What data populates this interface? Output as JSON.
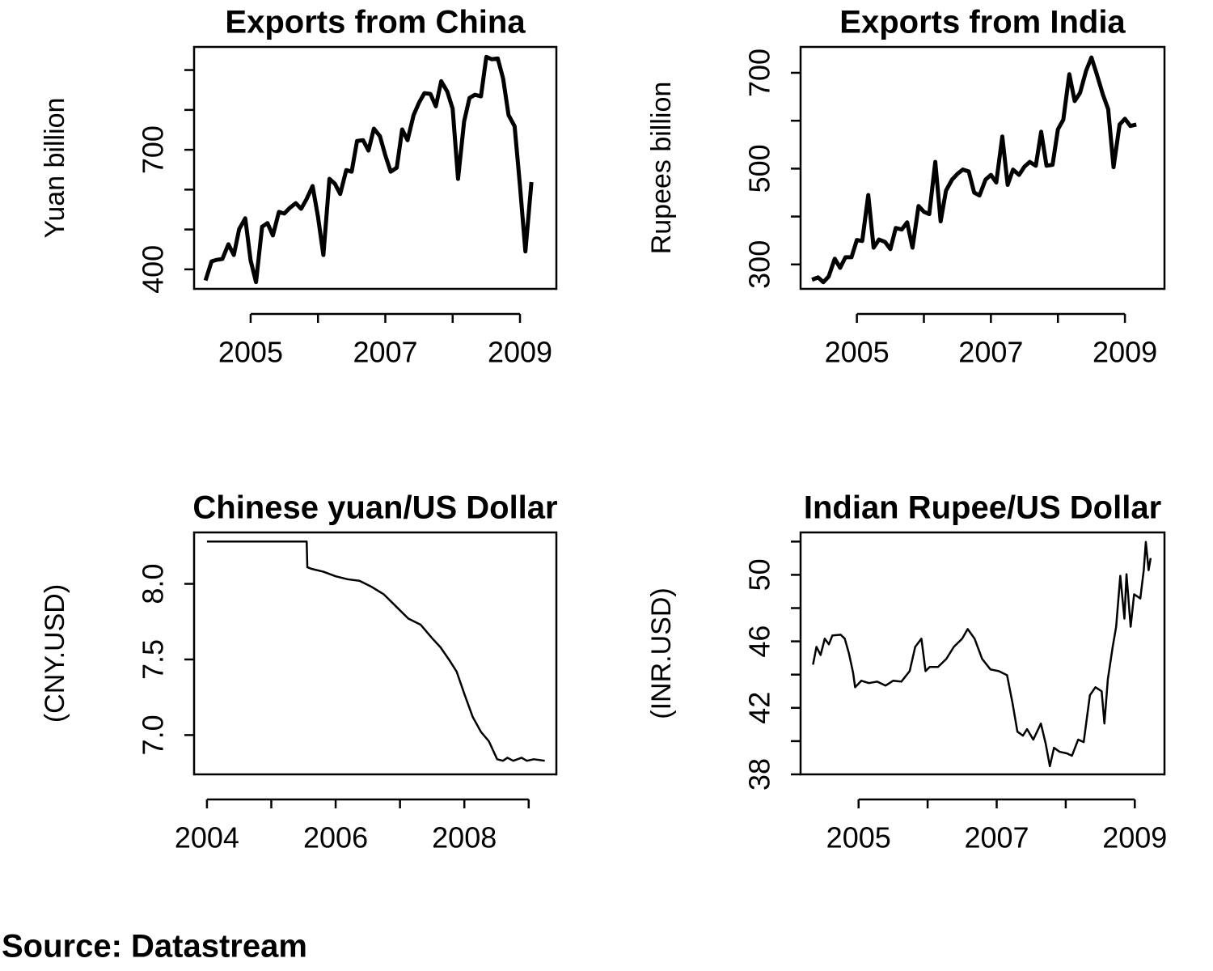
{
  "chart_data": [
    {
      "type": "line",
      "title": "Exports from China",
      "ylabel": "Yuan billion",
      "color": "#000000",
      "x": [
        2004.33,
        2004.42,
        2004.5,
        2004.58,
        2004.67,
        2004.75,
        2004.83,
        2004.92,
        2005,
        2005.08,
        2005.17,
        2005.25,
        2005.33,
        2005.42,
        2005.5,
        2005.58,
        2005.67,
        2005.75,
        2005.83,
        2005.92,
        2006,
        2006.08,
        2006.17,
        2006.25,
        2006.33,
        2006.42,
        2006.5,
        2006.58,
        2006.67,
        2006.75,
        2006.83,
        2006.92,
        2007,
        2007.08,
        2007.17,
        2007.25,
        2007.33,
        2007.42,
        2007.5,
        2007.58,
        2007.67,
        2007.75,
        2007.83,
        2007.92,
        2008,
        2008.08,
        2008.17,
        2008.25,
        2008.33,
        2008.42,
        2008.5,
        2008.58,
        2008.67,
        2008.75,
        2008.83,
        2008.92,
        2009,
        2009.08,
        2009.17
      ],
      "values": [
        372,
        420,
        424,
        426,
        463,
        436,
        501,
        528,
        422,
        368,
        507,
        516,
        485,
        544,
        540,
        554,
        566,
        552,
        576,
        609,
        532,
        436,
        627,
        615,
        589,
        649,
        645,
        722,
        724,
        698,
        753,
        734,
        686,
        645,
        655,
        751,
        724,
        787,
        818,
        842,
        840,
        809,
        872,
        846,
        803,
        627,
        771,
        830,
        838,
        834,
        933,
        927,
        929,
        878,
        787,
        759,
        609,
        445,
        619
      ],
      "xlim": [
        2004.16,
        2009.54
      ],
      "ylim": [
        351,
        958
      ],
      "xticks": [
        2005,
        {
          "value": 2006,
          "label": null
        },
        2007,
        {
          "value": 2008,
          "label": null
        },
        2009
      ],
      "yticks": [
        400,
        {
          "value": 500,
          "label": null
        },
        {
          "value": 600,
          "label": null
        },
        700,
        {
          "value": 800,
          "label": null
        },
        {
          "value": 900,
          "label": null
        }
      ]
    },
    {
      "type": "line",
      "title": "Exports from India",
      "ylabel": "Rupees billion",
      "color": "#000000",
      "x": [
        2004.33,
        2004.42,
        2004.5,
        2004.58,
        2004.67,
        2004.75,
        2004.83,
        2004.92,
        2005,
        2005.08,
        2005.17,
        2005.25,
        2005.33,
        2005.42,
        2005.5,
        2005.58,
        2005.67,
        2005.75,
        2005.83,
        2005.92,
        2006,
        2006.08,
        2006.17,
        2006.25,
        2006.33,
        2006.42,
        2006.5,
        2006.58,
        2006.67,
        2006.75,
        2006.83,
        2006.92,
        2007,
        2007.08,
        2007.17,
        2007.25,
        2007.33,
        2007.42,
        2007.5,
        2007.58,
        2007.67,
        2007.75,
        2007.83,
        2007.92,
        2008,
        2008.08,
        2008.17,
        2008.25,
        2008.33,
        2008.42,
        2008.5,
        2008.58,
        2008.67,
        2008.75,
        2008.83,
        2008.92,
        2009,
        2009.08,
        2009.17
      ],
      "values": [
        268,
        273,
        263,
        275,
        312,
        293,
        315,
        315,
        351,
        349,
        445,
        335,
        352,
        347,
        332,
        376,
        373,
        388,
        335,
        422,
        410,
        405,
        514,
        390,
        454,
        477,
        489,
        498,
        494,
        450,
        444,
        477,
        487,
        471,
        567,
        466,
        498,
        487,
        504,
        514,
        506,
        577,
        506,
        508,
        582,
        602,
        697,
        641,
        658,
        704,
        732,
        697,
        655,
        624,
        503,
        592,
        604,
        589,
        592
      ],
      "xlim": [
        2004.16,
        2009.59
      ],
      "ylim": [
        249,
        754
      ],
      "xticks": [
        2005,
        {
          "value": 2006,
          "label": null
        },
        2007,
        {
          "value": 2008,
          "label": null
        },
        2009
      ],
      "yticks": [
        300,
        {
          "value": 400,
          "label": null
        },
        500,
        {
          "value": 600,
          "label": null
        },
        700
      ]
    },
    {
      "type": "line",
      "title": "Chinese yuan/US Dollar",
      "ylabel": "(CNY.USD)",
      "color": "#000000",
      "x": [
        2004.0,
        2005.55,
        2005.56,
        2005.62,
        2005.81,
        2006.0,
        2006.19,
        2006.37,
        2006.56,
        2006.75,
        2006.94,
        2007.13,
        2007.32,
        2007.5,
        2007.63,
        2007.76,
        2007.88,
        2008.01,
        2008.13,
        2008.26,
        2008.38,
        2008.51,
        2008.6,
        2008.67,
        2008.76,
        2008.89,
        2008.97,
        2009.08,
        2009.25
      ],
      "values": [
        8.28,
        8.28,
        8.11,
        8.1,
        8.08,
        8.05,
        8.03,
        8.02,
        7.98,
        7.93,
        7.85,
        7.77,
        7.73,
        7.64,
        7.58,
        7.5,
        7.42,
        7.26,
        7.12,
        7.02,
        6.96,
        6.84,
        6.83,
        6.85,
        6.83,
        6.85,
        6.83,
        6.84,
        6.83
      ],
      "xlim": [
        2003.8,
        2009.43
      ],
      "ylim": [
        6.74,
        8.34
      ],
      "xticks": [
        2004,
        {
          "value": 2005,
          "label": null
        },
        2006,
        {
          "value": 2007,
          "label": null
        },
        2008,
        {
          "value": 2009,
          "label": null
        }
      ],
      "yticks": [
        {
          "value": 7,
          "label": "7.0"
        },
        7.5,
        {
          "value": 8,
          "label": "8.0"
        }
      ]
    },
    {
      "type": "line",
      "title": "Indian Rupee/US Dollar",
      "ylabel": "(INR.USD)",
      "color": "#000000",
      "x": [
        2004.34,
        2004.39,
        2004.45,
        2004.51,
        2004.57,
        2004.62,
        2004.74,
        2004.8,
        2004.86,
        2004.92,
        2004.95,
        2005.04,
        2005.15,
        2005.27,
        2005.39,
        2005.5,
        2005.62,
        2005.74,
        2005.82,
        2005.91,
        2005.97,
        2006.03,
        2006.15,
        2006.27,
        2006.38,
        2006.5,
        2006.58,
        2006.68,
        2006.79,
        2006.91,
        2007.03,
        2007.15,
        2007.23,
        2007.3,
        2007.38,
        2007.44,
        2007.53,
        2007.64,
        2007.71,
        2007.77,
        2007.83,
        2007.91,
        2008.02,
        2008.09,
        2008.18,
        2008.26,
        2008.35,
        2008.43,
        2008.52,
        2008.56,
        2008.61,
        2008.68,
        2008.73,
        2008.79,
        2008.85,
        2008.88,
        2008.94,
        2008.99,
        2009.08,
        2009.13,
        2009.16,
        2009.2,
        2009.23
      ],
      "values": [
        44.6,
        45.67,
        45.18,
        46.16,
        45.82,
        46.35,
        46.4,
        46.16,
        45.28,
        44.12,
        43.24,
        43.63,
        43.49,
        43.58,
        43.34,
        43.63,
        43.58,
        44.21,
        45.67,
        46.16,
        44.21,
        44.46,
        44.46,
        44.94,
        45.67,
        46.16,
        46.74,
        46.16,
        44.94,
        44.31,
        44.21,
        43.97,
        42.27,
        40.57,
        40.33,
        40.72,
        40.09,
        41.06,
        39.84,
        38.49,
        39.6,
        39.36,
        39.26,
        39.12,
        40.09,
        39.94,
        42.76,
        43.24,
        43.0,
        41.06,
        43.73,
        45.67,
        46.88,
        49.94,
        47.37,
        50.04,
        46.88,
        48.83,
        48.58,
        50.28,
        51.98,
        50.28,
        51.01
      ],
      "xlim": [
        2004.16,
        2009.43
      ],
      "ylim": [
        38,
        52.55
      ],
      "xticks": [
        2005,
        {
          "value": 2006,
          "label": null
        },
        2007,
        {
          "value": 2008,
          "label": null
        },
        2009
      ],
      "yticks": [
        38,
        {
          "value": 40,
          "label": null
        },
        42,
        {
          "value": 44,
          "label": null
        },
        46,
        {
          "value": 48,
          "label": null
        },
        50,
        {
          "value": 52,
          "label": null
        }
      ]
    }
  ],
  "source": "Source: Datastream"
}
